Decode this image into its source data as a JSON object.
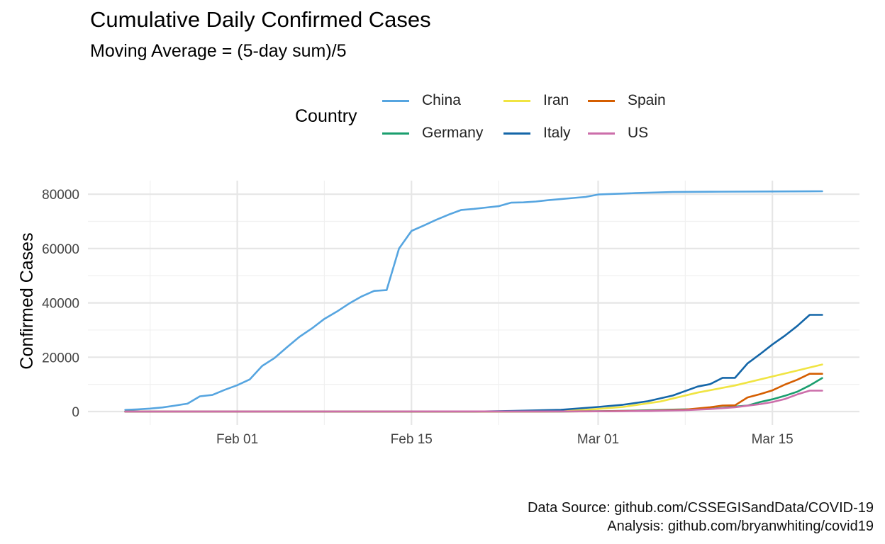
{
  "chart_data": {
    "type": "line",
    "title": "Cumulative Daily Confirmed Cases",
    "subtitle": "Moving Average = (5-day sum)/5",
    "xlabel": "",
    "ylabel": "Confirmed Cases",
    "legend_title": "Country",
    "legend_position": "top",
    "grid": true,
    "x_type": "date",
    "x_ticks": [
      "Feb 01",
      "Feb 15",
      "Mar 01",
      "Mar 15"
    ],
    "y_ticks": [
      "0",
      "20000",
      "40000",
      "60000",
      "80000"
    ],
    "ylim": [
      0,
      85000
    ],
    "xlim": [
      "2020-01-20",
      "2020-03-22"
    ],
    "colors": {
      "China": "#56a5e0",
      "Germany": "#1a9e6e",
      "Iran": "#f0e442",
      "Italy": "#1466a8",
      "Spain": "#d55e00",
      "US": "#cc6eaa"
    },
    "series": [
      {
        "name": "China",
        "x": [
          "2020-01-23",
          "2020-01-24",
          "2020-01-25",
          "2020-01-26",
          "2020-01-27",
          "2020-01-28",
          "2020-01-29",
          "2020-01-30",
          "2020-01-31",
          "2020-02-01",
          "2020-02-02",
          "2020-02-03",
          "2020-02-04",
          "2020-02-05",
          "2020-02-06",
          "2020-02-07",
          "2020-02-08",
          "2020-02-09",
          "2020-02-10",
          "2020-02-11",
          "2020-02-12",
          "2020-02-13",
          "2020-02-14",
          "2020-02-15",
          "2020-02-16",
          "2020-02-17",
          "2020-02-18",
          "2020-02-19",
          "2020-02-20",
          "2020-02-21",
          "2020-02-22",
          "2020-02-23",
          "2020-02-24",
          "2020-02-25",
          "2020-02-26",
          "2020-02-27",
          "2020-02-28",
          "2020-02-29",
          "2020-03-01",
          "2020-03-04",
          "2020-03-07",
          "2020-03-10",
          "2020-03-15",
          "2020-03-19"
        ],
        "values": [
          600,
          800,
          1100,
          1500,
          2200,
          2900,
          5600,
          6100,
          8000,
          9700,
          11800,
          16800,
          19700,
          23700,
          27500,
          30600,
          34100,
          36800,
          39800,
          42400,
          44400,
          44700,
          60000,
          66500,
          68500,
          70600,
          72500,
          74200,
          74600,
          75100,
          75600,
          76900,
          77000,
          77300,
          77800,
          78200,
          78600,
          79000,
          79900,
          80400,
          80800,
          80900,
          81000,
          81100
        ]
      },
      {
        "name": "Germany",
        "x": [
          "2020-01-23",
          "2020-02-20",
          "2020-02-27",
          "2020-03-01",
          "2020-03-04",
          "2020-03-07",
          "2020-03-10",
          "2020-03-12",
          "2020-03-13",
          "2020-03-14",
          "2020-03-15",
          "2020-03-16",
          "2020-03-17",
          "2020-03-18",
          "2020-03-19"
        ],
        "values": [
          0,
          0,
          30,
          120,
          350,
          700,
          1000,
          1800,
          2200,
          3500,
          4500,
          5800,
          7300,
          9600,
          12300
        ]
      },
      {
        "name": "Iran",
        "x": [
          "2020-01-23",
          "2020-02-20",
          "2020-02-23",
          "2020-02-26",
          "2020-02-29",
          "2020-03-03",
          "2020-03-06",
          "2020-03-09",
          "2020-03-12",
          "2020-03-15",
          "2020-03-17",
          "2020-03-19"
        ],
        "values": [
          0,
          0,
          50,
          150,
          600,
          1700,
          3700,
          7000,
          9600,
          12900,
          15100,
          17300
        ]
      },
      {
        "name": "Italy",
        "x": [
          "2020-01-23",
          "2020-02-20",
          "2020-02-23",
          "2020-02-27",
          "2020-03-01",
          "2020-03-03",
          "2020-03-05",
          "2020-03-07",
          "2020-03-09",
          "2020-03-10",
          "2020-03-11",
          "2020-03-12",
          "2020-03-13",
          "2020-03-14",
          "2020-03-15",
          "2020-03-16",
          "2020-03-17",
          "2020-03-18",
          "2020-03-19"
        ],
        "values": [
          0,
          0,
          200,
          650,
          1700,
          2500,
          3800,
          5900,
          9200,
          10100,
          12400,
          12400,
          17700,
          21100,
          24700,
          27900,
          31500,
          35600,
          35600
        ]
      },
      {
        "name": "Spain",
        "x": [
          "2020-01-23",
          "2020-02-25",
          "2020-03-01",
          "2020-03-05",
          "2020-03-08",
          "2020-03-10",
          "2020-03-11",
          "2020-03-12",
          "2020-03-13",
          "2020-03-14",
          "2020-03-15",
          "2020-03-16",
          "2020-03-17",
          "2020-03-18",
          "2020-03-19"
        ],
        "values": [
          0,
          0,
          80,
          280,
          700,
          1600,
          2200,
          2300,
          5200,
          6400,
          7800,
          9900,
          11700,
          13900,
          13900
        ]
      },
      {
        "name": "US",
        "x": [
          "2020-01-23",
          "2020-02-25",
          "2020-03-01",
          "2020-03-05",
          "2020-03-08",
          "2020-03-10",
          "2020-03-12",
          "2020-03-14",
          "2020-03-15",
          "2020-03-16",
          "2020-03-17",
          "2020-03-18",
          "2020-03-19"
        ],
        "values": [
          0,
          50,
          80,
          200,
          500,
          900,
          1600,
          2700,
          3500,
          4600,
          6300,
          7700,
          7700
        ]
      }
    ]
  },
  "caption": {
    "line1": "Data Source: github.com/CSSEGISandData/COVID-19",
    "line2": "Analysis: github.com/bryanwhiting/covid19"
  }
}
